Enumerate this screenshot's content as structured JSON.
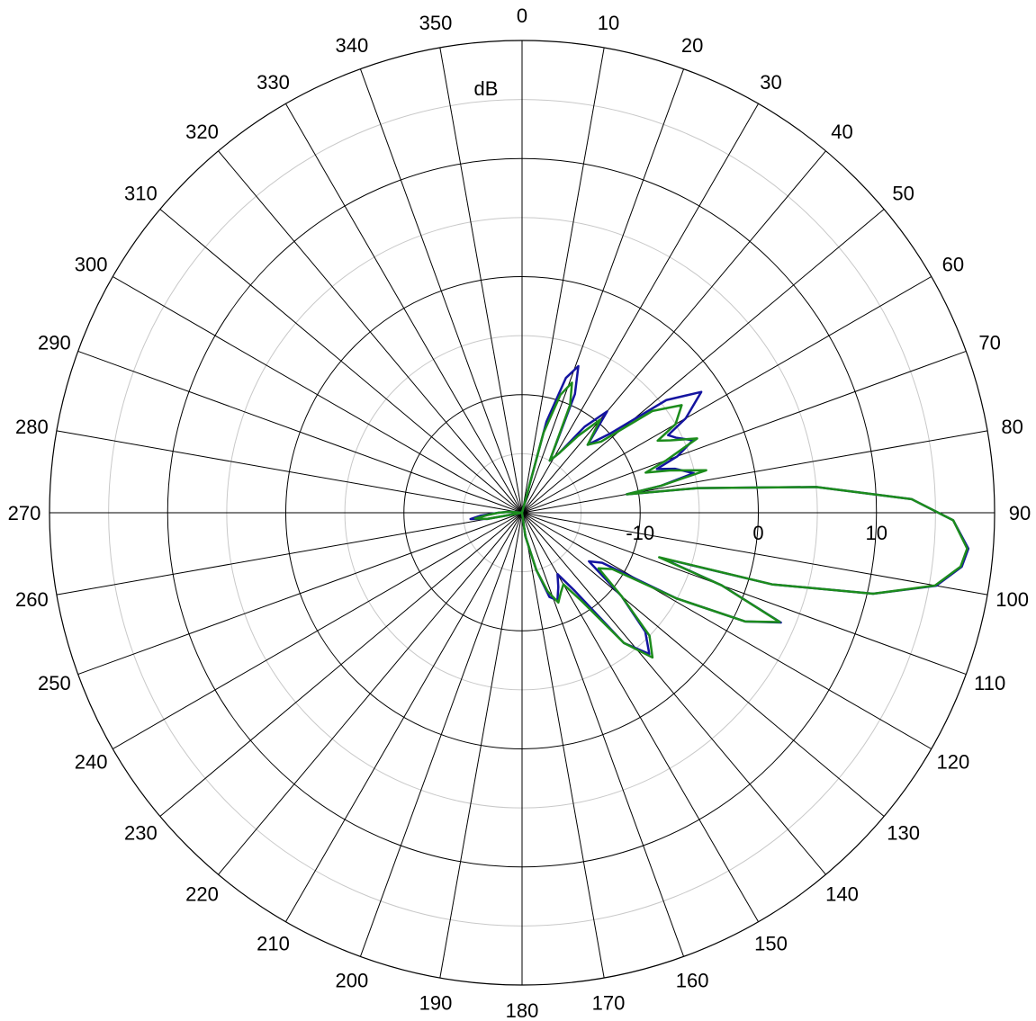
{
  "chart_data": {
    "type": "polar",
    "r_label": "dB",
    "direction": "clockwise",
    "zero": "top",
    "rlim": [
      -20,
      20
    ],
    "rticks": [
      -10,
      0,
      10
    ],
    "rminorticks": [
      -15,
      -5,
      5,
      15
    ],
    "thetaticks": [
      0,
      10,
      20,
      30,
      40,
      50,
      60,
      70,
      80,
      90,
      100,
      110,
      120,
      130,
      140,
      150,
      160,
      170,
      180,
      190,
      200,
      210,
      220,
      230,
      240,
      250,
      260,
      270,
      280,
      290,
      300,
      310,
      320,
      330,
      340,
      350
    ],
    "grid": true,
    "x": [
      0,
      10,
      15,
      18,
      21,
      24,
      28,
      32,
      36,
      40,
      44,
      48,
      52,
      56,
      60,
      62,
      64,
      67,
      70,
      72,
      74,
      77,
      79,
      80,
      82,
      85,
      88,
      91,
      94.6,
      97,
      100,
      103,
      106,
      108,
      110,
      113,
      116,
      119,
      122,
      126,
      130,
      134,
      138,
      142,
      146,
      150,
      154,
      158,
      162,
      166,
      172,
      180,
      240,
      255,
      260,
      263,
      266,
      270,
      275,
      285,
      330,
      360
    ],
    "series": [
      {
        "color": "#1414a0",
        "values": [
          -20,
          -20,
          -12,
          -8,
          -6.7,
          -9,
          -15,
          -14,
          -11,
          -8.8,
          -12,
          -10,
          -4.5,
          -1.7,
          -4,
          -6,
          -5.5,
          -4.3,
          -6,
          -8,
          -6.5,
          -5.1,
          -8,
          -11,
          -5,
          5,
          13,
          16.5,
          17.9,
          17.5,
          15.6,
          10.5,
          2,
          -7.6,
          -2,
          3.8,
          1,
          -5,
          -12,
          -13,
          -9,
          -5.5,
          -3.9,
          -6,
          -12,
          -14,
          -13,
          -12,
          -12.5,
          -15,
          -18,
          -20,
          -20,
          -20,
          -17,
          -15.6,
          -16.5,
          -18,
          -19,
          -20,
          -20,
          -20
        ]
      },
      {
        "color": "#1c8c1c",
        "values": [
          -20,
          -20,
          -13,
          -9.5,
          -8.2,
          -10,
          -15,
          -14,
          -12,
          -9.7,
          -12,
          -11,
          -6,
          -3.7,
          -5,
          -7,
          -6,
          -3.9,
          -7,
          -9,
          -7,
          -4,
          -8,
          -11,
          -5,
          5,
          13,
          16.5,
          17.8,
          17.4,
          15.5,
          10.5,
          2,
          -7.8,
          -2,
          3.7,
          1,
          -5,
          -11,
          -12,
          -9,
          -5,
          -3.5,
          -6,
          -11,
          -13,
          -12.5,
          -11.8,
          -13,
          -15,
          -18,
          -20,
          -20,
          -20,
          -17,
          -16,
          -17,
          -18,
          -19,
          -20,
          -20,
          -20
        ]
      }
    ]
  }
}
